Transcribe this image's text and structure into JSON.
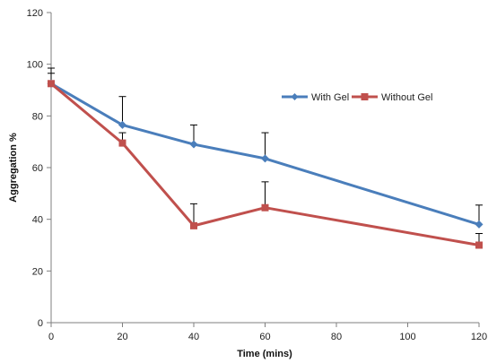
{
  "chart_data": {
    "type": "line",
    "title": "",
    "xlabel": "Time (mins)",
    "ylabel": "Aggregation %",
    "xlim": [
      0,
      120
    ],
    "ylim": [
      0,
      120
    ],
    "x_ticks": [
      0,
      20,
      40,
      60,
      80,
      100,
      120
    ],
    "y_ticks": [
      0,
      20,
      40,
      60,
      80,
      100,
      120
    ],
    "grid": false,
    "legend_position": "top-right",
    "series": [
      {
        "name": "With Gel",
        "color": "#4a7ebb",
        "marker": "diamond",
        "x": [
          0,
          20,
          40,
          60,
          120
        ],
        "values": [
          92.5,
          76.5,
          69,
          63.5,
          38
        ],
        "error_plus": [
          6,
          11,
          7.5,
          10,
          7.5
        ]
      },
      {
        "name": "Without Gel",
        "color": "#c0504d",
        "marker": "square",
        "x": [
          0,
          20,
          40,
          60,
          120
        ],
        "values": [
          92.5,
          69.5,
          37.5,
          44.5,
          30
        ],
        "error_plus": [
          4,
          4,
          8.5,
          10,
          4.5
        ]
      }
    ]
  }
}
